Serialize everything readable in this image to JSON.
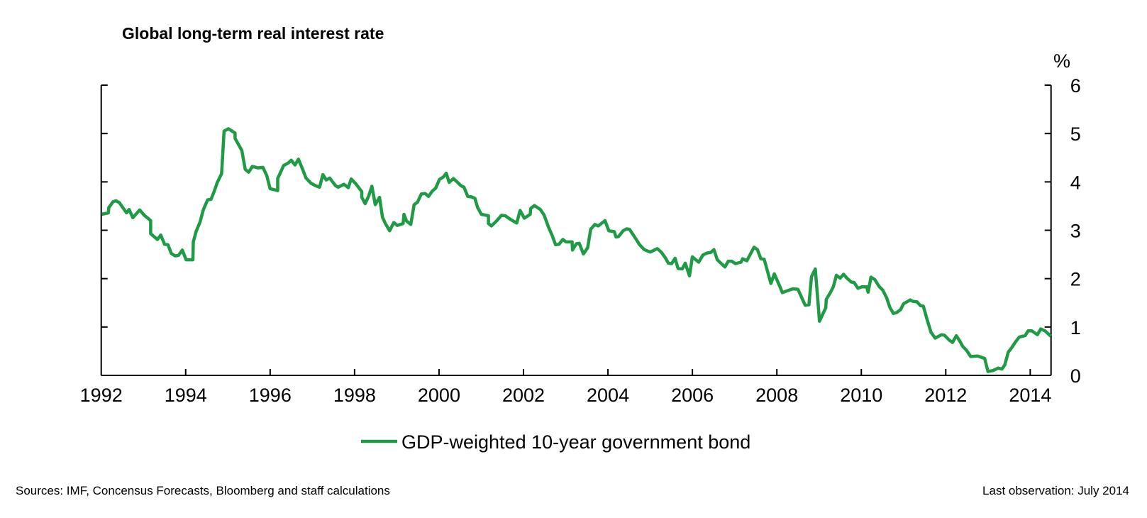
{
  "chart_data": {
    "type": "line",
    "title": "Global long-term real interest rate",
    "ylabel": "%",
    "xlabel": "",
    "xlim": [
      1992,
      2014.5
    ],
    "ylim": [
      0,
      6
    ],
    "y_axis_side": "right",
    "grid": false,
    "legend_position": "bottom",
    "x_ticks": [
      "1992",
      "1994",
      "1996",
      "1998",
      "2000",
      "2002",
      "2004",
      "2006",
      "2008",
      "2010",
      "2012",
      "2014"
    ],
    "y_ticks": [
      "0",
      "1",
      "2",
      "3",
      "4",
      "5",
      "6"
    ],
    "series": [
      {
        "name": "GDP-weighted 10-year government bond",
        "color": "#1f9a45",
        "points": [
          [
            1992.01,
            3.33
          ],
          [
            1992.17,
            3.36
          ],
          [
            1992.18,
            3.47
          ],
          [
            1992.28,
            3.59
          ],
          [
            1992.35,
            3.61
          ],
          [
            1992.43,
            3.57
          ],
          [
            1992.51,
            3.47
          ],
          [
            1992.6,
            3.36
          ],
          [
            1992.66,
            3.43
          ],
          [
            1992.75,
            3.26
          ],
          [
            1992.91,
            3.42
          ],
          [
            1993.02,
            3.31
          ],
          [
            1993.17,
            3.2
          ],
          [
            1993.17,
            2.93
          ],
          [
            1993.33,
            2.81
          ],
          [
            1993.41,
            2.9
          ],
          [
            1993.5,
            2.71
          ],
          [
            1993.58,
            2.7
          ],
          [
            1993.66,
            2.52
          ],
          [
            1993.75,
            2.47
          ],
          [
            1993.83,
            2.48
          ],
          [
            1993.92,
            2.59
          ],
          [
            1994.01,
            2.39
          ],
          [
            1994.17,
            2.39
          ],
          [
            1994.18,
            2.76
          ],
          [
            1994.25,
            2.98
          ],
          [
            1994.34,
            3.17
          ],
          [
            1994.42,
            3.43
          ],
          [
            1994.52,
            3.63
          ],
          [
            1994.6,
            3.64
          ],
          [
            1994.67,
            3.79
          ],
          [
            1994.75,
            3.99
          ],
          [
            1994.85,
            4.17
          ],
          [
            1994.91,
            5.05
          ],
          [
            1995.01,
            5.1
          ],
          [
            1995.17,
            5.01
          ],
          [
            1995.17,
            4.9
          ],
          [
            1995.33,
            4.65
          ],
          [
            1995.41,
            4.26
          ],
          [
            1995.49,
            4.2
          ],
          [
            1995.58,
            4.32
          ],
          [
            1995.71,
            4.29
          ],
          [
            1995.83,
            4.3
          ],
          [
            1995.92,
            4.13
          ],
          [
            1996.0,
            3.86
          ],
          [
            1996.18,
            3.82
          ],
          [
            1996.18,
            4.07
          ],
          [
            1996.32,
            4.34
          ],
          [
            1996.43,
            4.39
          ],
          [
            1996.5,
            4.45
          ],
          [
            1996.59,
            4.35
          ],
          [
            1996.67,
            4.47
          ],
          [
            1996.76,
            4.28
          ],
          [
            1996.85,
            4.08
          ],
          [
            1996.97,
            3.97
          ],
          [
            1997.08,
            3.92
          ],
          [
            1997.17,
            3.89
          ],
          [
            1997.25,
            4.15
          ],
          [
            1997.33,
            4.04
          ],
          [
            1997.41,
            4.08
          ],
          [
            1997.55,
            3.92
          ],
          [
            1997.61,
            3.89
          ],
          [
            1997.75,
            3.95
          ],
          [
            1997.85,
            3.88
          ],
          [
            1997.92,
            4.06
          ],
          [
            1998.03,
            3.96
          ],
          [
            1998.17,
            3.8
          ],
          [
            1998.17,
            3.68
          ],
          [
            1998.25,
            3.55
          ],
          [
            1998.33,
            3.7
          ],
          [
            1998.41,
            3.91
          ],
          [
            1998.49,
            3.53
          ],
          [
            1998.59,
            3.68
          ],
          [
            1998.66,
            3.27
          ],
          [
            1998.73,
            3.14
          ],
          [
            1998.83,
            2.99
          ],
          [
            1998.93,
            3.16
          ],
          [
            1999.01,
            3.1
          ],
          [
            1999.15,
            3.14
          ],
          [
            1999.17,
            3.33
          ],
          [
            1999.23,
            3.19
          ],
          [
            1999.33,
            3.12
          ],
          [
            1999.41,
            3.53
          ],
          [
            1999.49,
            3.58
          ],
          [
            1999.58,
            3.75
          ],
          [
            1999.67,
            3.76
          ],
          [
            1999.75,
            3.7
          ],
          [
            1999.84,
            3.81
          ],
          [
            1999.92,
            3.87
          ],
          [
            2000.01,
            4.05
          ],
          [
            2000.1,
            4.1
          ],
          [
            2000.17,
            4.18
          ],
          [
            2000.24,
            3.99
          ],
          [
            2000.34,
            4.07
          ],
          [
            2000.44,
            3.99
          ],
          [
            2000.52,
            3.92
          ],
          [
            2000.59,
            3.89
          ],
          [
            2000.68,
            3.7
          ],
          [
            2000.77,
            3.69
          ],
          [
            2000.85,
            3.66
          ],
          [
            2000.91,
            3.48
          ],
          [
            2001.0,
            3.33
          ],
          [
            2001.17,
            3.3
          ],
          [
            2001.17,
            3.14
          ],
          [
            2001.24,
            3.09
          ],
          [
            2001.36,
            3.19
          ],
          [
            2001.48,
            3.31
          ],
          [
            2001.57,
            3.3
          ],
          [
            2001.7,
            3.22
          ],
          [
            2001.84,
            3.15
          ],
          [
            2001.92,
            3.41
          ],
          [
            2002.02,
            3.25
          ],
          [
            2002.16,
            3.33
          ],
          [
            2002.17,
            3.45
          ],
          [
            2002.26,
            3.51
          ],
          [
            2002.4,
            3.43
          ],
          [
            2002.49,
            3.31
          ],
          [
            2002.59,
            3.07
          ],
          [
            2002.68,
            2.89
          ],
          [
            2002.76,
            2.7
          ],
          [
            2002.84,
            2.71
          ],
          [
            2002.93,
            2.81
          ],
          [
            2003.01,
            2.76
          ],
          [
            2003.15,
            2.76
          ],
          [
            2003.16,
            2.59
          ],
          [
            2003.25,
            2.72
          ],
          [
            2003.32,
            2.73
          ],
          [
            2003.42,
            2.51
          ],
          [
            2003.52,
            2.64
          ],
          [
            2003.59,
            3.02
          ],
          [
            2003.69,
            3.12
          ],
          [
            2003.77,
            3.09
          ],
          [
            2003.93,
            3.2
          ],
          [
            2004.02,
            2.99
          ],
          [
            2004.15,
            2.97
          ],
          [
            2004.19,
            2.86
          ],
          [
            2004.25,
            2.87
          ],
          [
            2004.36,
            2.99
          ],
          [
            2004.44,
            3.03
          ],
          [
            2004.51,
            3.02
          ],
          [
            2004.61,
            2.89
          ],
          [
            2004.75,
            2.7
          ],
          [
            2004.86,
            2.6
          ],
          [
            2005.0,
            2.55
          ],
          [
            2005.17,
            2.62
          ],
          [
            2005.27,
            2.54
          ],
          [
            2005.36,
            2.43
          ],
          [
            2005.43,
            2.32
          ],
          [
            2005.51,
            2.31
          ],
          [
            2005.59,
            2.42
          ],
          [
            2005.66,
            2.21
          ],
          [
            2005.76,
            2.2
          ],
          [
            2005.83,
            2.32
          ],
          [
            2005.93,
            2.06
          ],
          [
            2006.0,
            2.45
          ],
          [
            2006.15,
            2.34
          ],
          [
            2006.25,
            2.49
          ],
          [
            2006.35,
            2.53
          ],
          [
            2006.43,
            2.54
          ],
          [
            2006.51,
            2.6
          ],
          [
            2006.59,
            2.39
          ],
          [
            2006.77,
            2.24
          ],
          [
            2006.85,
            2.36
          ],
          [
            2006.93,
            2.36
          ],
          [
            2007.02,
            2.31
          ],
          [
            2007.15,
            2.34
          ],
          [
            2007.19,
            2.41
          ],
          [
            2007.29,
            2.37
          ],
          [
            2007.46,
            2.65
          ],
          [
            2007.54,
            2.6
          ],
          [
            2007.62,
            2.41
          ],
          [
            2007.7,
            2.4
          ],
          [
            2007.86,
            1.9
          ],
          [
            2007.94,
            2.1
          ],
          [
            2008.09,
            1.8
          ],
          [
            2008.13,
            1.71
          ],
          [
            2008.25,
            1.75
          ],
          [
            2008.38,
            1.79
          ],
          [
            2008.5,
            1.78
          ],
          [
            2008.67,
            1.45
          ],
          [
            2008.76,
            1.46
          ],
          [
            2008.82,
            2.04
          ],
          [
            2008.91,
            2.2
          ],
          [
            2009.01,
            1.12
          ],
          [
            2009.16,
            1.4
          ],
          [
            2009.17,
            1.57
          ],
          [
            2009.26,
            1.7
          ],
          [
            2009.34,
            1.84
          ],
          [
            2009.41,
            2.07
          ],
          [
            2009.5,
            2.01
          ],
          [
            2009.58,
            2.09
          ],
          [
            2009.66,
            2.01
          ],
          [
            2009.76,
            1.93
          ],
          [
            2009.83,
            1.92
          ],
          [
            2009.92,
            1.8
          ],
          [
            2010.01,
            1.83
          ],
          [
            2010.13,
            1.83
          ],
          [
            2010.16,
            1.72
          ],
          [
            2010.23,
            2.03
          ],
          [
            2010.32,
            1.98
          ],
          [
            2010.42,
            1.84
          ],
          [
            2010.51,
            1.76
          ],
          [
            2010.6,
            1.6
          ],
          [
            2010.68,
            1.4
          ],
          [
            2010.76,
            1.28
          ],
          [
            2010.84,
            1.3
          ],
          [
            2010.93,
            1.36
          ],
          [
            2011.0,
            1.48
          ],
          [
            2011.16,
            1.56
          ],
          [
            2011.22,
            1.53
          ],
          [
            2011.32,
            1.52
          ],
          [
            2011.4,
            1.44
          ],
          [
            2011.47,
            1.43
          ],
          [
            2011.55,
            1.18
          ],
          [
            2011.65,
            0.89
          ],
          [
            2011.75,
            0.77
          ],
          [
            2011.9,
            0.84
          ],
          [
            2011.97,
            0.83
          ],
          [
            2012.08,
            0.73
          ],
          [
            2012.16,
            0.68
          ],
          [
            2012.25,
            0.82
          ],
          [
            2012.34,
            0.7
          ],
          [
            2012.4,
            0.6
          ],
          [
            2012.49,
            0.52
          ],
          [
            2012.59,
            0.39
          ],
          [
            2012.76,
            0.4
          ],
          [
            2012.92,
            0.35
          ],
          [
            2013.0,
            0.08
          ],
          [
            2013.12,
            0.1
          ],
          [
            2013.24,
            0.15
          ],
          [
            2013.33,
            0.13
          ],
          [
            2013.4,
            0.22
          ],
          [
            2013.48,
            0.48
          ],
          [
            2013.56,
            0.57
          ],
          [
            2013.65,
            0.69
          ],
          [
            2013.74,
            0.79
          ],
          [
            2013.82,
            0.81
          ],
          [
            2013.88,
            0.82
          ],
          [
            2013.95,
            0.92
          ],
          [
            2014.04,
            0.92
          ],
          [
            2014.17,
            0.84
          ],
          [
            2014.25,
            0.96
          ],
          [
            2014.35,
            0.92
          ],
          [
            2014.49,
            0.81
          ]
        ]
      }
    ]
  },
  "footer": {
    "sources": "Sources: IMF, Concensus Forecasts, Bloomberg and staff calculations",
    "last_observation": "Last observation: July 2014"
  }
}
